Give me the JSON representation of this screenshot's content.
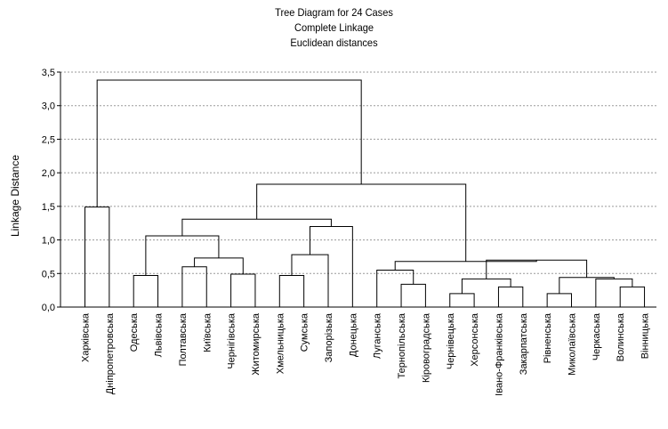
{
  "chart_data": {
    "type": "dendrogram",
    "title": "Tree Diagram for 24 Cases",
    "subtitle_1": "Complete Linkage",
    "subtitle_2": "Euclidean distances",
    "ylabel": "Linkage Distance",
    "ylim": [
      0,
      3.5
    ],
    "yticks": [
      "0,0",
      "0,5",
      "1,0",
      "1,5",
      "2,0",
      "2,5",
      "3,0",
      "3,5"
    ],
    "grid": "horizontal dashed",
    "cases": [
      "Харківська",
      "Дніпропетровська",
      "Одеська",
      "Львівська",
      "Полтавська",
      "Київська",
      "Чернігівська",
      "Житомирська",
      "Хмельницька",
      "Сумська",
      "Запорізька",
      "Донецька",
      "Луганська",
      "Тернопільська",
      "Кіровоградська",
      "Чернівецька",
      "Херсонська",
      "Івано-Франківська",
      "Закарпатська",
      "Рівненська",
      "Миколаївська",
      "Черкаська",
      "Волинська",
      "Вінницька"
    ],
    "merges": [
      {
        "a": "c2",
        "b": "c3",
        "height": 0.47
      },
      {
        "a": "c4",
        "b": "c5",
        "height": 0.6
      },
      {
        "a": "c6",
        "b": "c7",
        "height": 0.49
      },
      {
        "a": "m1",
        "b": "m2",
        "height": 0.73
      },
      {
        "a": "m0",
        "b": "m3",
        "height": 1.06
      },
      {
        "a": "c8",
        "b": "c9",
        "height": 0.47
      },
      {
        "a": "m5",
        "b": "c10",
        "height": 0.78
      },
      {
        "a": "m6",
        "b": "c11",
        "height": 1.2
      },
      {
        "a": "m4",
        "b": "m7",
        "height": 1.31
      },
      {
        "a": "c13",
        "b": "c14",
        "height": 0.34
      },
      {
        "a": "c12",
        "b": "m9",
        "height": 0.55
      },
      {
        "a": "c15",
        "b": "c16",
        "height": 0.2
      },
      {
        "a": "c17",
        "b": "c18",
        "height": 0.3
      },
      {
        "a": "m11",
        "b": "m12",
        "height": 0.42
      },
      {
        "a": "c19",
        "b": "c20",
        "height": 0.2
      },
      {
        "a": "c22",
        "b": "c23",
        "height": 0.3
      },
      {
        "a": "c21",
        "b": "m15",
        "height": 0.42
      },
      {
        "a": "m14",
        "b": "m16",
        "height": 0.44
      },
      {
        "a": "m13",
        "b": "m17",
        "height": 0.7
      },
      {
        "a": "m10",
        "b": "m18",
        "height": 0.68
      },
      {
        "a": "m8",
        "b": "m19",
        "height": 1.83
      },
      {
        "a": "c0",
        "b": "c1",
        "height": 1.49
      },
      {
        "a": "m21",
        "b": "m20",
        "height": 3.38
      }
    ]
  }
}
